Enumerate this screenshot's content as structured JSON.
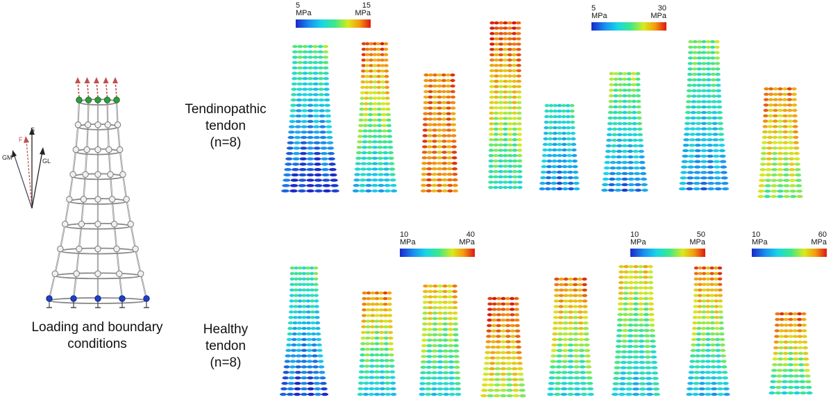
{
  "model": {
    "caption_line1": "Loading and boundary",
    "caption_line2": "conditions",
    "vectors": {
      "s": "S",
      "f": "F",
      "gm": "GM",
      "gl": "GL"
    }
  },
  "rows": {
    "tendinopathic": {
      "line1": "Tendinopathic",
      "line2": "tendon",
      "line3": "(n=8)"
    },
    "healthy": {
      "line1": "Healthy",
      "line2": "tendon",
      "line3": "(n=8)"
    }
  },
  "colorbars": [
    {
      "min": "5",
      "max": "15",
      "unit": "MPa"
    },
    {
      "min": "5",
      "max": "30",
      "unit": "MPa"
    },
    {
      "min": "10",
      "max": "40",
      "unit": "MPa"
    },
    {
      "min": "10",
      "max": "50",
      "unit": "MPa"
    },
    {
      "min": "10",
      "max": "60",
      "unit": "MPa"
    }
  ],
  "colors": {
    "scale": [
      "#1a28c8",
      "#1a8ff0",
      "#19d6e6",
      "#3de88a",
      "#d8ea1c",
      "#f59a10",
      "#d91810"
    ],
    "force_arrow": "#c0504d",
    "top_node": "#2e9e3e",
    "bottom_node": "#1f3fc8"
  }
}
